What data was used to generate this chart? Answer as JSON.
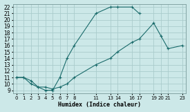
{
  "xlabel": "Humidex (Indice chaleur)",
  "bg_color": "#cce8e8",
  "grid_color": "#aacccc",
  "line_color": "#1a6b6b",
  "xlim": [
    -0.5,
    23.5
  ],
  "ylim": [
    8.5,
    22.5
  ],
  "xticks": [
    0,
    1,
    2,
    3,
    4,
    5,
    6,
    7,
    8,
    11,
    13,
    14,
    16,
    17,
    19,
    20,
    21,
    23
  ],
  "yticks": [
    9,
    10,
    11,
    12,
    13,
    14,
    15,
    16,
    17,
    18,
    19,
    20,
    21,
    22
  ],
  "curve1_x": [
    0,
    1,
    2,
    3,
    4,
    5,
    6,
    7,
    8,
    11,
    13,
    14,
    16,
    17
  ],
  "curve1_y": [
    11,
    11,
    10,
    9.5,
    9,
    9,
    11,
    14,
    16,
    21,
    22,
    22,
    22,
    21
  ],
  "curve2_x": [
    0,
    1,
    2,
    3,
    4,
    5,
    6,
    7,
    8,
    11,
    13,
    14,
    16,
    17,
    19,
    20,
    21,
    23
  ],
  "curve2_y": [
    11,
    11,
    10.5,
    9.5,
    9.5,
    9.2,
    9.5,
    10,
    11,
    13,
    14,
    15,
    16.5,
    17,
    19.5,
    17.5,
    15.5,
    16
  ]
}
